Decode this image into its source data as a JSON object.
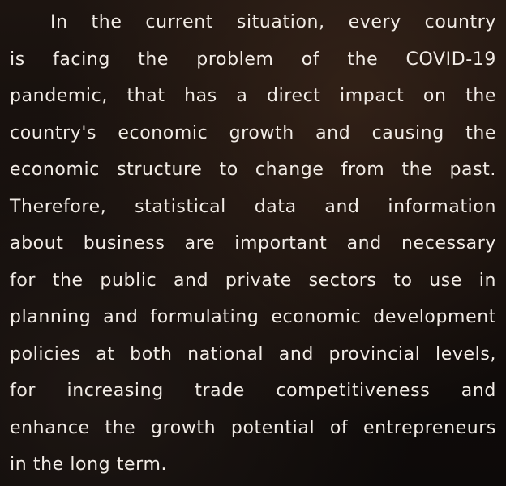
{
  "paragraph": {
    "lines": [
      "In the current situation, every country",
      "is facing the problem of the COVID-19",
      "pandemic, that has a direct impact on the",
      "country's economic growth and causing the",
      "economic structure to change from the past.",
      "Therefore, statistical data and information",
      "about business are important and necessary",
      "for the public and private sectors to use in",
      "planning and formulating economic development",
      "policies at both national and provincial levels,",
      "for increasing trade competitiveness and",
      "enhance the growth potential of entrepreneurs",
      "in the long term."
    ]
  }
}
